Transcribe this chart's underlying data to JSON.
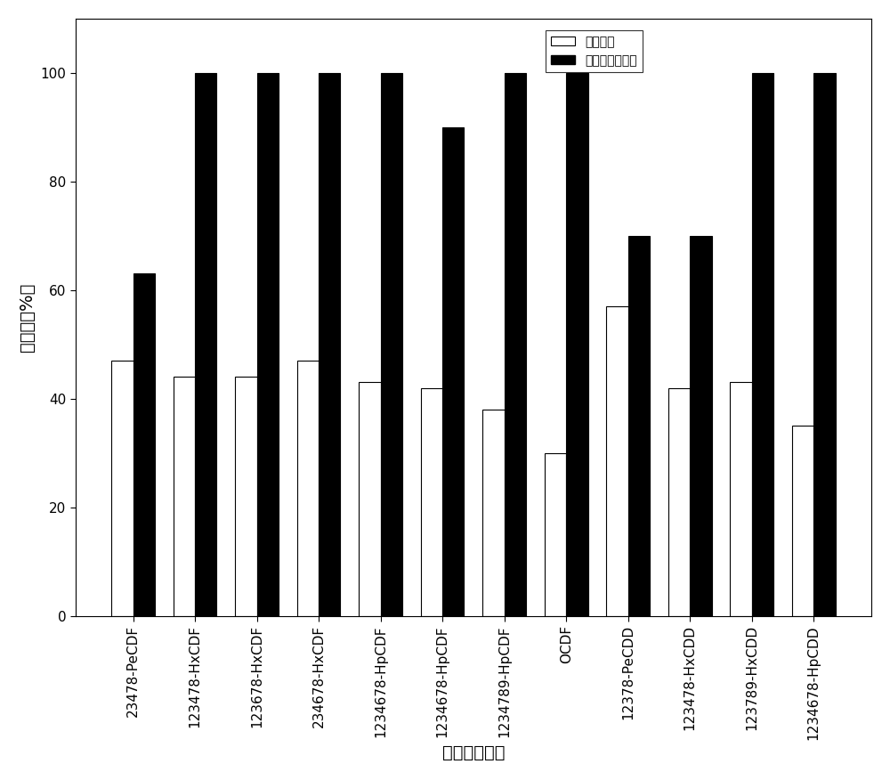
{
  "categories": [
    "23478-PeCDF",
    "123478-HxCDF",
    "123678-HxCDF",
    "234678-HxCDF",
    "1234678-HpCDF",
    "1234678-HpCDF",
    "1234789-HpCDF",
    "OCDF",
    "12378-PeCDD",
    "123478-HxCDD",
    "123789-HxCDD",
    "1234678-HpCDD"
  ],
  "white_bars": [
    47,
    44,
    44,
    47,
    43,
    42,
    38,
    30,
    57,
    42,
    43,
    35
  ],
  "black_bars": [
    63,
    100,
    100,
    100,
    100,
    90,
    100,
    100,
    70,
    70,
    100,
    100
  ],
  "white_color": "#ffffff",
  "white_edge_color": "#000000",
  "black_color": "#000000",
  "ylabel": "降解率（%）",
  "xlabel": "二恶英异构体",
  "legend_white": "辐照飞灰",
  "legend_black": "辐照飞灰提取液",
  "ylim": [
    0,
    110
  ],
  "yticks": [
    0,
    20,
    40,
    60,
    80,
    100
  ],
  "bar_width": 0.35,
  "axis_fontsize": 14,
  "tick_fontsize": 11,
  "legend_fontsize": 13,
  "bg_color": "#f0f0f0"
}
